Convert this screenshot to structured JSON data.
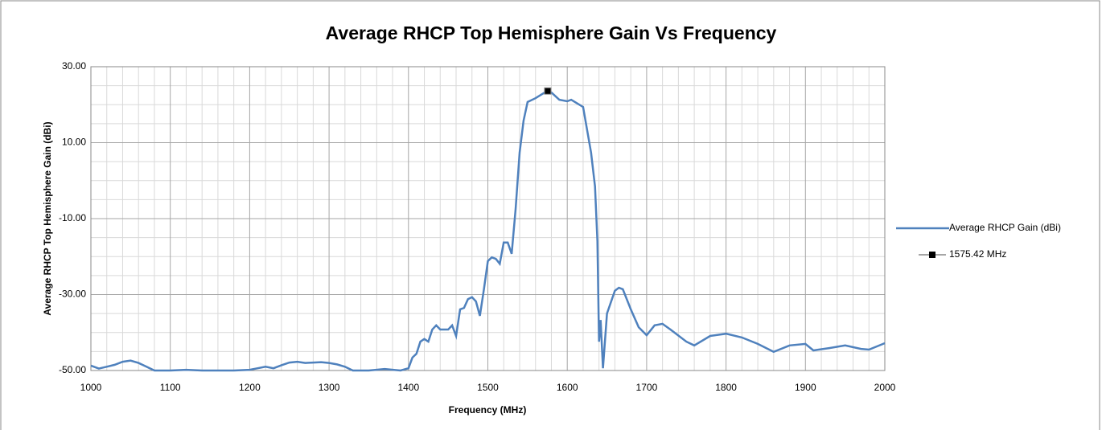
{
  "chart_data": {
    "type": "line",
    "title": "Average RHCP Top Hemisphere Gain Vs Frequency",
    "x_label": "Frequency (MHz)",
    "y_label": "Average RHCP Top Hemisphere Gain (dBi)",
    "xlim": [
      1000,
      2000
    ],
    "xticks": [
      1000,
      1100,
      1200,
      1300,
      1400,
      1500,
      1600,
      1700,
      1800,
      1900,
      2000
    ],
    "ylim": [
      -50,
      30
    ],
    "yticks": [
      {
        "value": 30,
        "label": "30.00"
      },
      {
        "value": 10,
        "label": "10.00"
      },
      {
        "value": -10,
        "label": "-10.00"
      },
      {
        "value": -30,
        "label": "-30.00"
      },
      {
        "value": -50,
        "label": "-50.00"
      }
    ],
    "grid": true,
    "legend": "right",
    "series": [
      {
        "name": "Average RHCP Gain (dBi)",
        "color": "#4f81bd",
        "x": [
          1000,
          1010,
          1020,
          1030,
          1040,
          1050,
          1060,
          1070,
          1080,
          1100,
          1120,
          1140,
          1160,
          1180,
          1200,
          1210,
          1220,
          1230,
          1240,
          1250,
          1260,
          1270,
          1280,
          1290,
          1300,
          1310,
          1320,
          1330,
          1350,
          1370,
          1390,
          1400,
          1405,
          1410,
          1415,
          1420,
          1425,
          1430,
          1435,
          1440,
          1450,
          1455,
          1460,
          1465,
          1470,
          1475,
          1480,
          1485,
          1490,
          1495,
          1500,
          1505,
          1510,
          1515,
          1520,
          1525,
          1530,
          1535,
          1540,
          1545,
          1550,
          1560,
          1570,
          1575,
          1580,
          1590,
          1600,
          1605,
          1620,
          1630,
          1635,
          1638,
          1640,
          1642,
          1645,
          1650,
          1660,
          1665,
          1670,
          1680,
          1690,
          1700,
          1710,
          1720,
          1730,
          1750,
          1760,
          1780,
          1800,
          1820,
          1840,
          1860,
          1880,
          1900,
          1910,
          1930,
          1950,
          1970,
          1980,
          2000
        ],
        "values": [
          -48.7,
          -49.5,
          -49,
          -48.5,
          -47.7,
          -47.4,
          -48,
          -49,
          -50,
          -50,
          -49.8,
          -50,
          -50,
          -50,
          -49.8,
          -49.4,
          -49,
          -49.4,
          -48.6,
          -47.9,
          -47.7,
          -48,
          -47.9,
          -47.8,
          -48,
          -48.4,
          -49,
          -50,
          -50,
          -49.6,
          -50,
          -49.4,
          -46.6,
          -45.6,
          -42.4,
          -41.7,
          -42.4,
          -39.2,
          -38.1,
          -39.2,
          -39.2,
          -38.1,
          -40.9,
          -33.9,
          -33.5,
          -31.2,
          -30.7,
          -31.8,
          -35.6,
          -28.6,
          -21.2,
          -20.2,
          -20.6,
          -21.9,
          -16.3,
          -16.3,
          -19.3,
          -7.5,
          7.4,
          15.8,
          20.7,
          21.7,
          23,
          23.6,
          23.2,
          21.3,
          20.9,
          21.3,
          19.4,
          7.4,
          -1.5,
          -15.9,
          -42.4,
          -36.7,
          -49.4,
          -35,
          -29,
          -28.2,
          -28.6,
          -33.9,
          -38.6,
          -40.7,
          -38.1,
          -37.7,
          -39.2,
          -42.4,
          -43.4,
          -40.9,
          -40.3,
          -41.3,
          -43,
          -45.1,
          -43.4,
          -43,
          -44.7,
          -44.1,
          -43.4,
          -44.3,
          -44.5,
          -42.8
        ]
      },
      {
        "name": "1575.42 MHz",
        "color": "#000000",
        "x": [
          1575.42
        ],
        "values": [
          23.6
        ]
      }
    ]
  }
}
